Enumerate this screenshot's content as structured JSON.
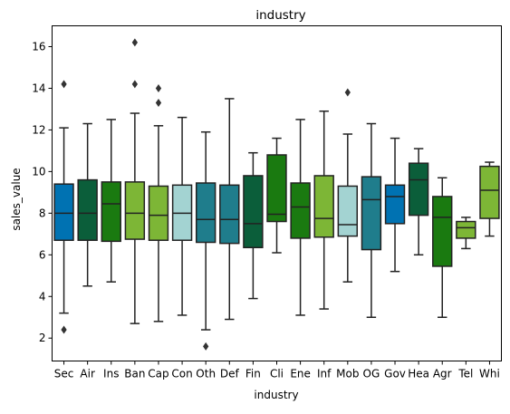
{
  "chart_data": {
    "type": "box",
    "title": "industry",
    "xlabel": "industry",
    "ylabel": "sales_value",
    "ylim": [
      0.9,
      17.0
    ],
    "yticks": [
      2,
      4,
      6,
      8,
      10,
      12,
      14,
      16
    ],
    "grid": false,
    "legend": "none",
    "categories": [
      "Sec",
      "Air",
      "Ins",
      "Ban",
      "Cap",
      "Con",
      "Oth",
      "Def",
      "Fin",
      "Cli",
      "Ene",
      "Inf",
      "Mob",
      "OG",
      "Gov",
      "Hea",
      "Agr",
      "Tel",
      "Whi"
    ],
    "boxes": [
      {
        "category": "Sec",
        "color": "#0072b2",
        "whisker_low": 3.2,
        "q1": 6.7,
        "median": 8.0,
        "q3": 9.4,
        "whisker_high": 12.1,
        "outliers": [
          14.2,
          2.4
        ]
      },
      {
        "category": "Air",
        "color": "#0b5e3a",
        "whisker_low": 4.5,
        "q1": 6.7,
        "median": 8.0,
        "q3": 9.6,
        "whisker_high": 12.3,
        "outliers": []
      },
      {
        "category": "Ins",
        "color": "#1a7a10",
        "whisker_low": 4.7,
        "q1": 6.65,
        "median": 8.45,
        "q3": 9.5,
        "whisker_high": 12.5,
        "outliers": []
      },
      {
        "category": "Ban",
        "color": "#7db636",
        "whisker_low": 2.7,
        "q1": 6.75,
        "median": 8.0,
        "q3": 9.5,
        "whisker_high": 12.8,
        "outliers": [
          16.2,
          14.2
        ]
      },
      {
        "category": "Cap",
        "color": "#7db636",
        "whisker_low": 2.8,
        "q1": 6.7,
        "median": 7.9,
        "q3": 9.3,
        "whisker_high": 12.2,
        "outliers": [
          14.0,
          13.3
        ]
      },
      {
        "category": "Con",
        "color": "#a3d3d2",
        "whisker_low": 3.1,
        "q1": 6.7,
        "median": 8.0,
        "q3": 9.35,
        "whisker_high": 12.6,
        "outliers": []
      },
      {
        "category": "Oth",
        "color": "#1f7d8c",
        "whisker_low": 2.4,
        "q1": 6.6,
        "median": 7.7,
        "q3": 9.45,
        "whisker_high": 11.9,
        "outliers": [
          1.6
        ]
      },
      {
        "category": "Def",
        "color": "#1f7d8c",
        "whisker_low": 2.9,
        "q1": 6.55,
        "median": 7.7,
        "q3": 9.35,
        "whisker_high": 13.5,
        "outliers": []
      },
      {
        "category": "Fin",
        "color": "#0b5e3a",
        "whisker_low": 3.9,
        "q1": 6.35,
        "median": 7.5,
        "q3": 9.8,
        "whisker_high": 10.9,
        "outliers": []
      },
      {
        "category": "Cli",
        "color": "#1a7a10",
        "whisker_low": 6.1,
        "q1": 7.6,
        "median": 7.95,
        "q3": 10.8,
        "whisker_high": 11.6,
        "outliers": []
      },
      {
        "category": "Ene",
        "color": "#1a7a10",
        "whisker_low": 3.1,
        "q1": 6.8,
        "median": 8.3,
        "q3": 9.45,
        "whisker_high": 12.5,
        "outliers": []
      },
      {
        "category": "Inf",
        "color": "#7db636",
        "whisker_low": 3.4,
        "q1": 6.85,
        "median": 7.75,
        "q3": 9.8,
        "whisker_high": 12.9,
        "outliers": []
      },
      {
        "category": "Mob",
        "color": "#a3d3d2",
        "whisker_low": 4.7,
        "q1": 6.9,
        "median": 7.45,
        "q3": 9.3,
        "whisker_high": 11.8,
        "outliers": [
          13.8
        ]
      },
      {
        "category": "OG",
        "color": "#1f7d8c",
        "whisker_low": 3.0,
        "q1": 6.25,
        "median": 8.65,
        "q3": 9.75,
        "whisker_high": 12.3,
        "outliers": []
      },
      {
        "category": "Gov",
        "color": "#0072b2",
        "whisker_low": 5.2,
        "q1": 7.5,
        "median": 8.8,
        "q3": 9.35,
        "whisker_high": 11.6,
        "outliers": []
      },
      {
        "category": "Hea",
        "color": "#0b5e3a",
        "whisker_low": 6.0,
        "q1": 7.9,
        "median": 9.6,
        "q3": 10.4,
        "whisker_high": 11.1,
        "outliers": []
      },
      {
        "category": "Agr",
        "color": "#1a7a10",
        "whisker_low": 3.0,
        "q1": 5.45,
        "median": 7.8,
        "q3": 8.8,
        "whisker_high": 9.7,
        "outliers": []
      },
      {
        "category": "Tel",
        "color": "#7db636",
        "whisker_low": 6.3,
        "q1": 6.8,
        "median": 7.3,
        "q3": 7.6,
        "whisker_high": 7.8,
        "outliers": []
      },
      {
        "category": "Whi",
        "color": "#7db636",
        "whisker_low": 6.9,
        "q1": 7.75,
        "median": 9.1,
        "q3": 10.25,
        "whisker_high": 10.45,
        "outliers": []
      }
    ]
  }
}
